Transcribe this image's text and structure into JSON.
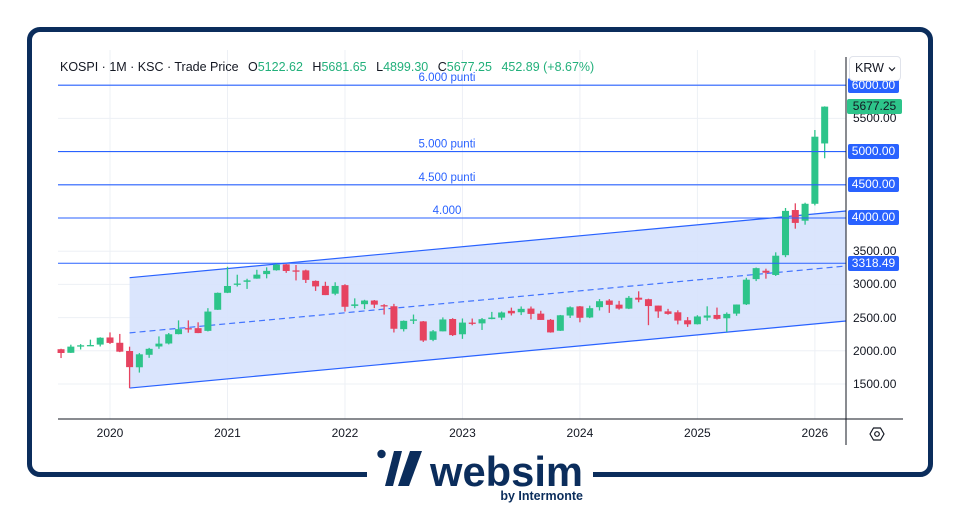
{
  "header": {
    "title": "KOSPI · 1M · KSC · Trade Price",
    "ohlc": [
      {
        "label": "O",
        "value": "5122.62"
      },
      {
        "label": "H",
        "value": "5681.65"
      },
      {
        "label": "L",
        "value": "4899.30"
      },
      {
        "label": "C",
        "value": "5677.25"
      }
    ],
    "change": "452.89 (+8.67%)"
  },
  "currency_button": {
    "label": "KRW",
    "icon": "chevron-down-icon"
  },
  "settings_button": {
    "icon": "gear-icon"
  },
  "logo": {
    "brand": "websim",
    "tagline": "by Intermonte"
  },
  "colors": {
    "up": "#2dc48a",
    "down": "#e64360",
    "drawing": "#2962ff",
    "channel_fill": "#d6e2fd",
    "frame": "#0b2d5c",
    "last_price_badge": "#2dc48a",
    "grid": "#edf0f5"
  },
  "chart_data": {
    "type": "candlestick",
    "title": "KOSPI · 1M · KSC · Trade Price",
    "interval": "1M",
    "currency": "KRW",
    "xlabel": "",
    "ylabel": "",
    "ylim": [
      973,
      6530
    ],
    "grid": true,
    "legend_position": "top-left",
    "last": {
      "open": 5122.62,
      "high": 5681.65,
      "low": 4899.3,
      "close": 5677.25,
      "change": 452.89,
      "change_pct": 8.67
    },
    "yticks": [
      1500,
      2000,
      2500,
      3000,
      3500,
      4000,
      4500,
      5000,
      5500,
      6000
    ],
    "ytick_labels": [
      "1500.00",
      "2000.00",
      "2500.00",
      "3000.00",
      "3500.00",
      "4000.00",
      "4500.00",
      "5000.00",
      "5500.00",
      "6000.00"
    ],
    "xticks": [
      {
        "label": "2020",
        "date": "2020-01"
      },
      {
        "label": "2021",
        "date": "2021-01"
      },
      {
        "label": "2022",
        "date": "2022-01"
      },
      {
        "label": "2023",
        "date": "2023-01"
      },
      {
        "label": "2024",
        "date": "2024-01"
      },
      {
        "label": "2025",
        "date": "2025-01"
      },
      {
        "label": "2026",
        "date": "2026-01"
      }
    ],
    "candle_fields": [
      "date",
      "open",
      "high",
      "low",
      "close"
    ],
    "candles": [
      [
        "2019-08",
        2024,
        2031,
        1891,
        1967
      ],
      [
        "2019-09",
        1970,
        2092,
        1968,
        2063
      ],
      [
        "2019-10",
        2063,
        2101,
        2020,
        2083
      ],
      [
        "2019-11",
        2084,
        2168,
        2075,
        2087
      ],
      [
        "2019-12",
        2094,
        2204,
        2065,
        2197
      ],
      [
        "2020-01",
        2201,
        2277,
        2103,
        2119
      ],
      [
        "2020-02",
        2121,
        2254,
        1980,
        1987
      ],
      [
        "2020-03",
        1997,
        2062,
        1439,
        1754
      ],
      [
        "2020-04",
        1752,
        1966,
        1672,
        1947
      ],
      [
        "2020-05",
        1940,
        2044,
        1894,
        2030
      ],
      [
        "2020-06",
        2065,
        2217,
        2030,
        2108
      ],
      [
        "2020-07",
        2110,
        2268,
        2096,
        2249
      ],
      [
        "2020-08",
        2251,
        2458,
        2248,
        2326
      ],
      [
        "2020-09",
        2341,
        2458,
        2273,
        2327
      ],
      [
        "2020-10",
        2341,
        2429,
        2266,
        2267
      ],
      [
        "2020-11",
        2300,
        2642,
        2292,
        2591
      ],
      [
        "2020-12",
        2618,
        2878,
        2616,
        2873
      ],
      [
        "2021-01",
        2874,
        3266,
        2869,
        2976
      ],
      [
        "2021-02",
        3000,
        3146,
        2968,
        3013
      ],
      [
        "2021-03",
        3039,
        3085,
        2932,
        3061
      ],
      [
        "2021-04",
        3087,
        3220,
        3085,
        3147
      ],
      [
        "2021-05",
        3155,
        3257,
        3091,
        3204
      ],
      [
        "2021-06",
        3213,
        3316,
        3207,
        3297
      ],
      [
        "2021-07",
        3302,
        3306,
        3174,
        3202
      ],
      [
        "2021-08",
        3211,
        3292,
        3060,
        3199
      ],
      [
        "2021-09",
        3211,
        3222,
        3021,
        3068
      ],
      [
        "2021-10",
        3053,
        3060,
        2902,
        2970
      ],
      [
        "2021-11",
        2978,
        3040,
        2839,
        2839
      ],
      [
        "2021-12",
        2860,
        3032,
        2837,
        2977
      ],
      [
        "2022-01",
        2989,
        3003,
        2591,
        2663
      ],
      [
        "2022-02",
        2676,
        2790,
        2642,
        2699
      ],
      [
        "2022-03",
        2702,
        2768,
        2627,
        2757
      ],
      [
        "2022-04",
        2757,
        2765,
        2643,
        2695
      ],
      [
        "2022-05",
        2687,
        2703,
        2546,
        2685
      ],
      [
        "2022-06",
        2671,
        2707,
        2276,
        2332
      ],
      [
        "2022-07",
        2326,
        2457,
        2291,
        2451
      ],
      [
        "2022-08",
        2462,
        2546,
        2404,
        2472
      ],
      [
        "2022-09",
        2443,
        2449,
        2134,
        2155
      ],
      [
        "2022-10",
        2165,
        2313,
        2145,
        2293
      ],
      [
        "2022-11",
        2293,
        2503,
        2292,
        2472
      ],
      [
        "2022-12",
        2479,
        2491,
        2223,
        2236
      ],
      [
        "2023-01",
        2249,
        2487,
        2180,
        2425
      ],
      [
        "2023-02",
        2425,
        2486,
        2385,
        2412
      ],
      [
        "2023-03",
        2413,
        2494,
        2314,
        2476
      ],
      [
        "2023-04",
        2478,
        2586,
        2475,
        2501
      ],
      [
        "2023-05",
        2500,
        2592,
        2463,
        2577
      ],
      [
        "2023-06",
        2602,
        2650,
        2532,
        2564
      ],
      [
        "2023-07",
        2581,
        2668,
        2538,
        2632
      ],
      [
        "2023-08",
        2636,
        2667,
        2474,
        2556
      ],
      [
        "2023-09",
        2560,
        2603,
        2464,
        2465
      ],
      [
        "2023-10",
        2467,
        2479,
        2273,
        2277
      ],
      [
        "2023-11",
        2302,
        2540,
        2299,
        2535
      ],
      [
        "2023-12",
        2531,
        2669,
        2494,
        2655
      ],
      [
        "2024-01",
        2669,
        2675,
        2429,
        2497
      ],
      [
        "2024-02",
        2502,
        2680,
        2492,
        2642
      ],
      [
        "2024-03",
        2657,
        2779,
        2607,
        2747
      ],
      [
        "2024-04",
        2757,
        2779,
        2571,
        2692
      ],
      [
        "2024-05",
        2695,
        2752,
        2620,
        2636
      ],
      [
        "2024-06",
        2635,
        2825,
        2628,
        2798
      ],
      [
        "2024-07",
        2800,
        2896,
        2731,
        2770
      ],
      [
        "2024-08",
        2777,
        2785,
        2386,
        2674
      ],
      [
        "2024-09",
        2681,
        2682,
        2496,
        2593
      ],
      [
        "2024-10",
        2594,
        2632,
        2544,
        2556
      ],
      [
        "2024-11",
        2580,
        2610,
        2398,
        2455
      ],
      [
        "2024-12",
        2460,
        2508,
        2360,
        2399
      ],
      [
        "2025-01",
        2400,
        2536,
        2396,
        2517
      ],
      [
        "2025-02",
        2500,
        2670,
        2453,
        2532
      ],
      [
        "2025-03",
        2540,
        2651,
        2470,
        2481
      ],
      [
        "2025-04",
        2490,
        2578,
        2284,
        2556
      ],
      [
        "2025-05",
        2560,
        2698,
        2527,
        2697
      ],
      [
        "2025-06",
        2700,
        3100,
        2690,
        3071
      ],
      [
        "2025-07",
        3080,
        3254,
        3050,
        3245
      ],
      [
        "2025-08",
        3206,
        3237,
        3086,
        3176
      ],
      [
        "2025-09",
        3142,
        3483,
        3127,
        3432
      ],
      [
        "2025-10",
        3440,
        4151,
        3410,
        4107
      ],
      [
        "2025-11",
        4120,
        4221,
        3839,
        3926
      ],
      [
        "2025-12",
        3959,
        4230,
        3899,
        4214
      ],
      [
        "2026-01",
        4214,
        5325,
        4190,
        5224.36
      ],
      [
        "2026-02",
        5122.62,
        5681.65,
        4899.3,
        5677.25
      ]
    ],
    "drawings": {
      "horizontal_lines": [
        {
          "price": 6000,
          "label": "6.000 punti"
        },
        {
          "price": 5000,
          "label": "5.000 punti"
        },
        {
          "price": 4500,
          "label": "4.500 punti"
        },
        {
          "price": 4000,
          "label": "4.000"
        },
        {
          "price": 3318.49,
          "label": ""
        }
      ],
      "parallel_channel": {
        "start_date": "2020-03",
        "end": "right-edge",
        "upper": [
          3101,
          4105
        ],
        "lower": [
          1439,
          2449
        ],
        "midline": "dashed"
      }
    },
    "price_badges": [
      {
        "price": 6000,
        "text": "6000.00",
        "kind": "drawing"
      },
      {
        "price": 5677.25,
        "text": "5677.25",
        "kind": "last"
      },
      {
        "price": 5000,
        "text": "5000.00",
        "kind": "drawing"
      },
      {
        "price": 4500,
        "text": "4500.00",
        "kind": "drawing"
      },
      {
        "price": 4000,
        "text": "4000.00",
        "kind": "drawing"
      },
      {
        "price": 3318.49,
        "text": "3318.49",
        "kind": "drawing"
      }
    ]
  }
}
